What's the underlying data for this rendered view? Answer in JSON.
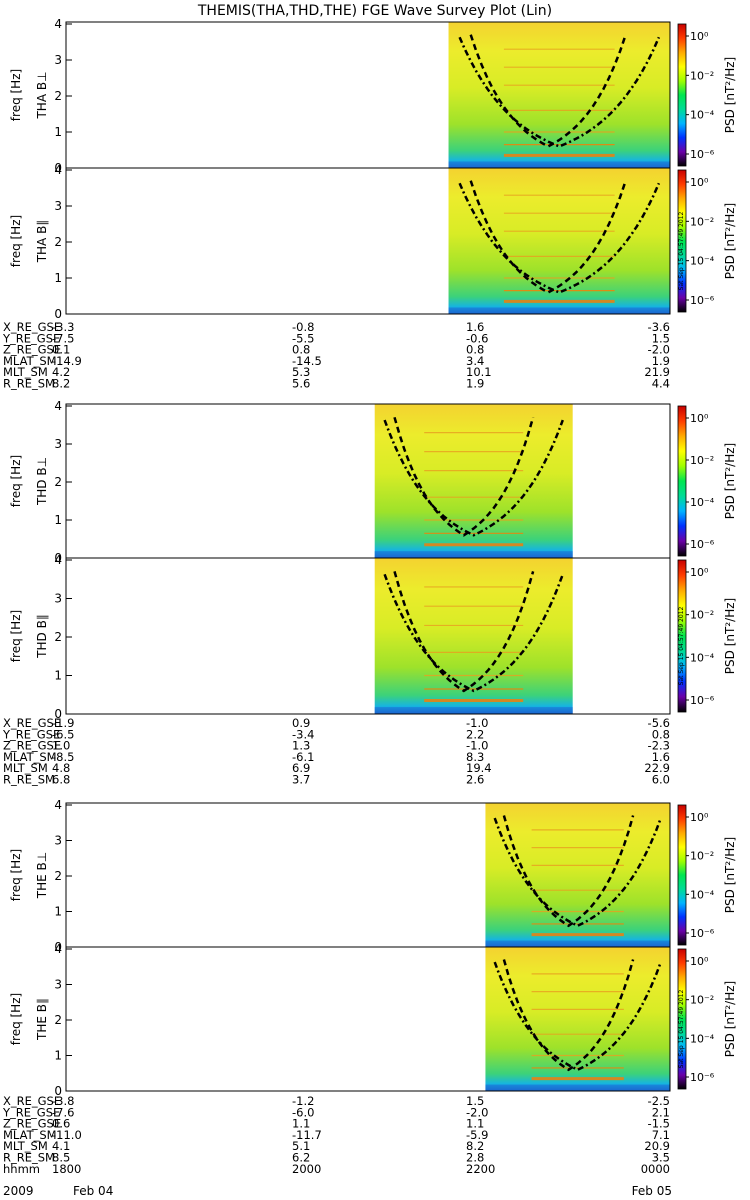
{
  "title": "THEMIS(THA,THD,THE) FGE Wave Survey Plot (Lin)",
  "colorbar": {
    "label": "PSD [nT²/Hz]",
    "tick_labels": [
      "10⁰",
      "10⁻²",
      "10⁻⁴",
      "10⁻⁶"
    ],
    "tick_values": [
      1,
      0.01,
      0.0001,
      1e-06
    ],
    "stamp": "Sat Sep 15 04:57:49 2012",
    "colormap": [
      "#000000",
      "#6a00a8",
      "#0032ff",
      "#00b4ff",
      "#00dc96",
      "#00e650",
      "#a0ff00",
      "#ffff00",
      "#ffaa00",
      "#ff3c00",
      "#c80000"
    ]
  },
  "probes": [
    {
      "id": "THA",
      "panels": [
        {
          "label": "THA B⊥",
          "ylabel": "freq [Hz]",
          "yticks": [
            "0",
            "1",
            "2",
            "3",
            "4"
          ]
        },
        {
          "label": "THA B∥",
          "ylabel": "freq [Hz]",
          "yticks": [
            "0",
            "1",
            "2",
            "3",
            "4"
          ]
        }
      ],
      "ephemeris": [
        {
          "name": "X_RE_GSE",
          "values": [
            "-3.3",
            "-0.8",
            "1.6",
            "-3.6"
          ]
        },
        {
          "name": "Y_RE_GSE",
          "values": [
            "-7.5",
            "-5.5",
            "-0.6",
            "1.5"
          ]
        },
        {
          "name": "Z_RE_GSE",
          "values": [
            "0.1",
            "0.8",
            "0.8",
            "-2.0"
          ]
        },
        {
          "name": "MLAT_SM",
          "values": [
            "-14.9",
            "-14.5",
            "3.4",
            "1.9"
          ]
        },
        {
          "name": "MLT_SM",
          "values": [
            "4.2",
            "5.3",
            "10.1",
            "21.9"
          ]
        },
        {
          "name": "R_RE_SM",
          "values": [
            "8.2",
            "5.6",
            "1.9",
            "4.4"
          ]
        }
      ]
    },
    {
      "id": "THD",
      "panels": [
        {
          "label": "THD B⊥",
          "ylabel": "freq [Hz]",
          "yticks": [
            "0",
            "1",
            "2",
            "3",
            "4"
          ]
        },
        {
          "label": "THD B∥",
          "ylabel": "freq [Hz]",
          "yticks": [
            "0",
            "1",
            "2",
            "3",
            "4"
          ]
        }
      ],
      "ephemeris": [
        {
          "name": "X_RE_GSE",
          "values": [
            "-1.9",
            "0.9",
            "-1.0",
            "-5.6"
          ]
        },
        {
          "name": "Y_RE_GSE",
          "values": [
            "-6.5",
            "-3.4",
            "2.2",
            "0.8"
          ]
        },
        {
          "name": "Z_RE_GSE",
          "values": [
            "1.0",
            "1.3",
            "-1.0",
            "-2.3"
          ]
        },
        {
          "name": "MLAT_SM",
          "values": [
            "-8.5",
            "-6.1",
            "8.3",
            "1.6"
          ]
        },
        {
          "name": "MLT_SM",
          "values": [
            "4.8",
            "6.9",
            "19.4",
            "22.9"
          ]
        },
        {
          "name": "R_RE_SM",
          "values": [
            "6.8",
            "3.7",
            "2.6",
            "6.0"
          ]
        }
      ]
    },
    {
      "id": "THE",
      "panels": [
        {
          "label": "THE B⊥",
          "ylabel": "freq [Hz]",
          "yticks": [
            "0",
            "1",
            "2",
            "3",
            "4"
          ]
        },
        {
          "label": "THE B∥",
          "ylabel": "freq [Hz]",
          "yticks": [
            "0",
            "1",
            "2",
            "3",
            "4"
          ]
        }
      ],
      "ephemeris": [
        {
          "name": "X_RE_GSE",
          "values": [
            "-3.8",
            "-1.2",
            "1.5",
            "-2.5"
          ]
        },
        {
          "name": "Y_RE_GSE",
          "values": [
            "-7.6",
            "-6.0",
            "-2.0",
            "2.1"
          ]
        },
        {
          "name": "Z_RE_GSE",
          "values": [
            "0.6",
            "1.1",
            "1.1",
            "-1.5"
          ]
        },
        {
          "name": "MLAT_SM",
          "values": [
            "-11.0",
            "-11.7",
            "-5.9",
            "7.1"
          ]
        },
        {
          "name": "MLT_SM",
          "values": [
            "4.1",
            "5.1",
            "8.2",
            "20.9"
          ]
        },
        {
          "name": "R_RE_SM",
          "values": [
            "8.5",
            "6.2",
            "2.8",
            "3.5"
          ]
        },
        {
          "name": "hhmm",
          "values": [
            "1800",
            "2000",
            "2200",
            "0000"
          ]
        }
      ]
    }
  ],
  "date_row": {
    "year": "2009",
    "start": "Feb 04",
    "end": "Feb 05"
  },
  "chart_data": {
    "type": "heatmap",
    "title": "THEMIS(THA,THD,THE) FGE Wave Survey Plot (Lin)",
    "xlabel": "hhmm",
    "xticks": [
      "1800",
      "2000",
      "2200",
      "0000"
    ],
    "x_range_hhmm": [
      "1800",
      "0000"
    ],
    "ylabel": "freq [Hz]",
    "ylim": [
      0,
      4
    ],
    "color_scale": "log",
    "zlabel": "PSD [nT²/Hz]",
    "z_ticks": [
      1e-06,
      0.0001,
      0.01,
      1
    ],
    "grid": false,
    "series": [
      {
        "name": "THA B⊥",
        "data_start_hhmm": "2148",
        "data_end_hhmm": "0000"
      },
      {
        "name": "THA B∥",
        "data_start_hhmm": "2148",
        "data_end_hhmm": "0000"
      },
      {
        "name": "THD B⊥",
        "data_start_hhmm": "2104",
        "data_end_hhmm": "2302"
      },
      {
        "name": "THD B∥",
        "data_start_hhmm": "2104",
        "data_end_hhmm": "2302"
      },
      {
        "name": "THE B⊥",
        "data_start_hhmm": "2210",
        "data_end_hhmm": "0000"
      },
      {
        "name": "THE B∥",
        "data_start_hhmm": "2210",
        "data_end_hhmm": "0000"
      }
    ]
  }
}
